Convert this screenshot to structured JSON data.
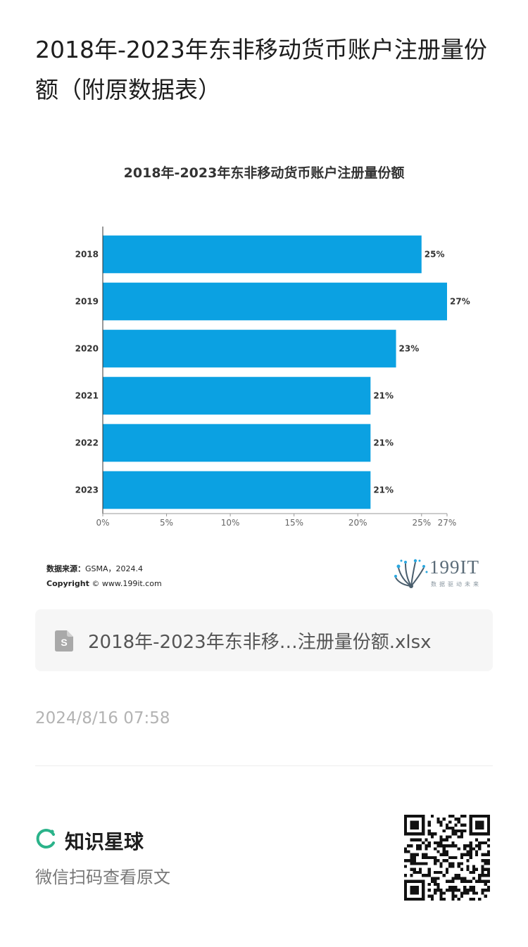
{
  "post": {
    "title": "2018年-2023年东非移动货币账户注册量份额（附原数据表）"
  },
  "chart_data": {
    "type": "bar",
    "orientation": "horizontal",
    "title": "2018年-2023年东非移动货币账户注册量份额",
    "categories": [
      "2018",
      "2019",
      "2020",
      "2021",
      "2022",
      "2023"
    ],
    "values": [
      25,
      27,
      23,
      21,
      21,
      21
    ],
    "value_labels": [
      "25%",
      "27%",
      "23%",
      "21%",
      "21%",
      "21%"
    ],
    "x_ticks": [
      "0%",
      "5%",
      "10%",
      "15%",
      "20%",
      "25%",
      "27%"
    ],
    "x_tick_values": [
      0,
      5,
      10,
      15,
      20,
      25,
      27
    ],
    "xlim": [
      0,
      27
    ],
    "bar_color": "#0ba1e2",
    "grid": false
  },
  "source": {
    "label": "数据来源：",
    "value": "GSMA，2024.4",
    "copyright_label": "Copyright",
    "copyright_value": "© www.199it.com"
  },
  "logo": {
    "name": "199IT",
    "tagline": "数据驱动未来"
  },
  "attachment": {
    "icon": "spreadsheet-file-icon",
    "filename": "2018年-2023年东非移…注册量份额.xlsx"
  },
  "meta": {
    "timestamp": "2024/8/16 07:58"
  },
  "footer": {
    "brand_name": "知识星球",
    "brand_color": "#2bb38a",
    "scan_hint": "微信扫码查看原文",
    "qr_icon": "qr-code-icon"
  }
}
